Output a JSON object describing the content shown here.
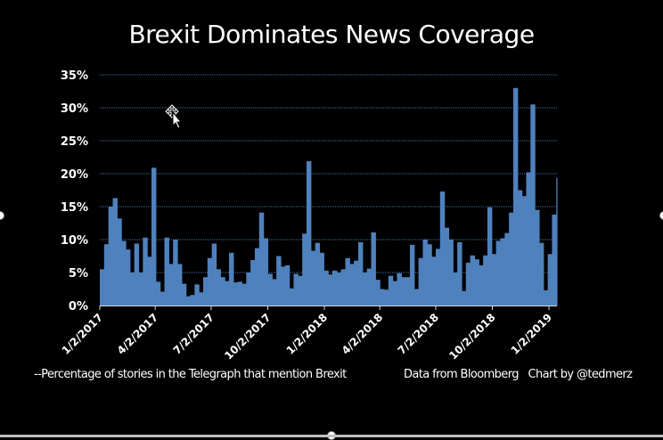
{
  "chart_data": {
    "type": "area",
    "title": "Brexit Dominates News Coverage",
    "subtitle": "--Percentage of stories in the Telegraph that mention Brexit",
    "credits": "Data from Bloomberg   Chart by @tedmerz",
    "x_start": "2017-01-02",
    "frequency": "weekly",
    "xlabel": "",
    "ylabel": "",
    "ylim": [
      0,
      35
    ],
    "y_ticks": [
      "0%",
      "5%",
      "10%",
      "15%",
      "20%",
      "25%",
      "30%",
      "35%"
    ],
    "x_ticks": [
      "1/2/2017",
      "4/2/2017",
      "7/2/2017",
      "10/2/2017",
      "1/2/2018",
      "4/2/2018",
      "7/2/2018",
      "10/2/2018",
      "1/2/2019"
    ],
    "grid": true,
    "series_color": "#4f81bd",
    "values": [
      5.5,
      9.3,
      15,
      16.3,
      13.2,
      9.8,
      8.5,
      5,
      9.4,
      5,
      10.3,
      7.4,
      20.9,
      3.6,
      2.1,
      10.3,
      6.3,
      10,
      6.3,
      3.3,
      1.4,
      1.6,
      3.2,
      2,
      4.3,
      7.2,
      9.4,
      5.5,
      4.3,
      3.7,
      8,
      3.5,
      3.6,
      3.3,
      5,
      6.9,
      8.7,
      14.1,
      10.2,
      4.8,
      4,
      7.5,
      5.9,
      6.1,
      2.6,
      4.8,
      4.5,
      10.9,
      21.9,
      8.3,
      9.5,
      8,
      5.3,
      4.7,
      5.3,
      5,
      5.5,
      7.2,
      6.3,
      6.8,
      9.6,
      5,
      5.6,
      11.1,
      3.9,
      2.5,
      2.4,
      4.5,
      3.7,
      4.9,
      4.3,
      4.3,
      9.2,
      2.5,
      7.2,
      10,
      9.3,
      7.4,
      8.6,
      17.3,
      11.8,
      10,
      5,
      9.6,
      2.2,
      6.5,
      7.6,
      7,
      6.1,
      7.6,
      14.9,
      7.8,
      9.8,
      10.2,
      11,
      14.1,
      33,
      17.5,
      16.6,
      20.2,
      30.5,
      14.5,
      9.5,
      2.3,
      7.8,
      13.8,
      19.4
    ]
  },
  "cursor_icon": "move-cursor-icon"
}
